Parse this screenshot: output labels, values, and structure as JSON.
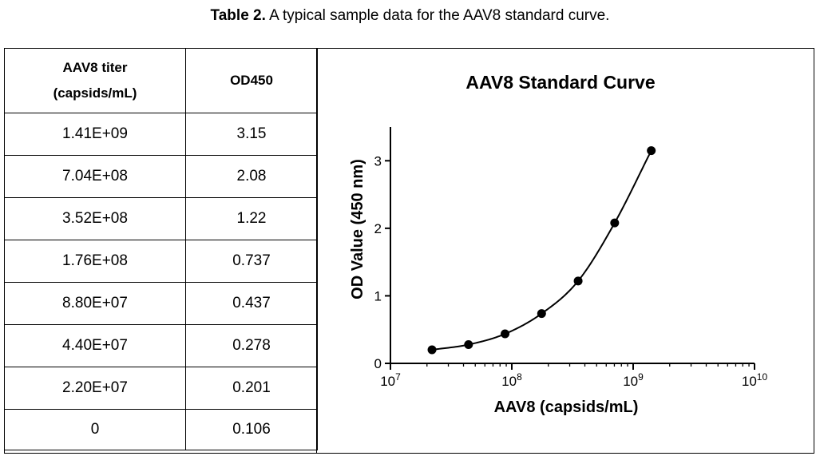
{
  "caption": {
    "label": "Table 2.",
    "text": " A typical sample data for the AAV8 standard curve."
  },
  "table": {
    "headers": {
      "titer_line1": "AAV8 titer",
      "titer_line2": "(capsids/mL)",
      "od": "OD450"
    },
    "rows": [
      {
        "titer": "1.41E+09",
        "od": "3.15"
      },
      {
        "titer": "7.04E+08",
        "od": "2.08"
      },
      {
        "titer": "3.52E+08",
        "od": "1.22"
      },
      {
        "titer": "1.76E+08",
        "od": "0.737"
      },
      {
        "titer": "8.80E+07",
        "od": "0.437"
      },
      {
        "titer": "4.40E+07",
        "od": "0.278"
      },
      {
        "titer": "2.20E+07",
        "od": "0.201"
      },
      {
        "titer": "0",
        "od": "0.106"
      }
    ]
  },
  "chart_data": {
    "type": "scatter",
    "title": "AAV8 Standard Curve",
    "xlabel": "AAV8 (capsids/mL)",
    "ylabel": "OD Value (450 nm)",
    "xscale": "log",
    "xlim": [
      10000000,
      10000000000
    ],
    "ylim": [
      0,
      3.5
    ],
    "x_ticks": [
      {
        "base": "10",
        "exp": "7",
        "value": 10000000
      },
      {
        "base": "10",
        "exp": "8",
        "value": 100000000
      },
      {
        "base": "10",
        "exp": "9",
        "value": 1000000000
      },
      {
        "base": "10",
        "exp": "10",
        "value": 10000000000
      }
    ],
    "y_ticks": [
      {
        "label": "0",
        "value": 0
      },
      {
        "label": "1",
        "value": 1
      },
      {
        "label": "2",
        "value": 2
      },
      {
        "label": "3",
        "value": 3
      }
    ],
    "points": [
      {
        "x": 22000000,
        "y": 0.201
      },
      {
        "x": 44000000,
        "y": 0.278
      },
      {
        "x": 88000000,
        "y": 0.437
      },
      {
        "x": 176000000,
        "y": 0.737
      },
      {
        "x": 352000000,
        "y": 1.22
      },
      {
        "x": 704000000,
        "y": 2.08
      },
      {
        "x": 1410000000,
        "y": 3.15
      }
    ],
    "fit_curve": true,
    "grid": false,
    "colors": {
      "line": "#000000",
      "marker": "#000000"
    }
  }
}
